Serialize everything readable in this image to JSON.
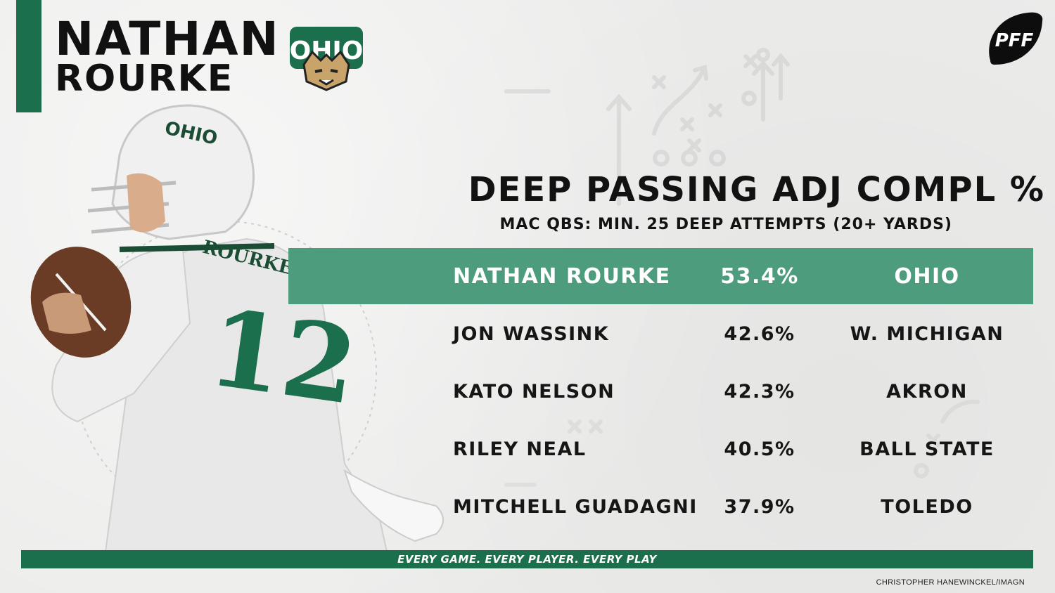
{
  "player": {
    "first_name": "NATHAN",
    "last_name": "ROURKE"
  },
  "logos": {
    "team_logo_text": "OHIO",
    "pff_logo_text": "PFF"
  },
  "jersey": {
    "helmet_text": "OHIO",
    "nameplate": "ROURKE",
    "number": "12"
  },
  "chart": {
    "title": "DEEP PASSING ADJ COMPL %",
    "subtitle": "MAC QBS: MIN. 25 DEEP ATTEMPTS (20+ YARDS)",
    "rows": [
      {
        "name": "NATHAN ROURKE",
        "pct": "53.4%",
        "team": "OHIO",
        "highlight": true
      },
      {
        "name": "JON WASSINK",
        "pct": "42.6%",
        "team": "W. MICHIGAN"
      },
      {
        "name": "KATO NELSON",
        "pct": "42.3%",
        "team": "AKRON"
      },
      {
        "name": "RILEY NEAL",
        "pct": "40.5%",
        "team": "BALL STATE"
      },
      {
        "name": "MITCHELL GUADAGNI",
        "pct": "37.9%",
        "team": "TOLEDO"
      }
    ]
  },
  "footer": {
    "tagline": "EVERY GAME. EVERY PLAYER. EVERY PLAY"
  },
  "credit": "CHRISTOPHER HANEWINCKEL/IMAGN",
  "colors": {
    "brand_green": "#1b6f4c",
    "highlight_green": "#4e9c7e",
    "text_dark": "#111111"
  }
}
